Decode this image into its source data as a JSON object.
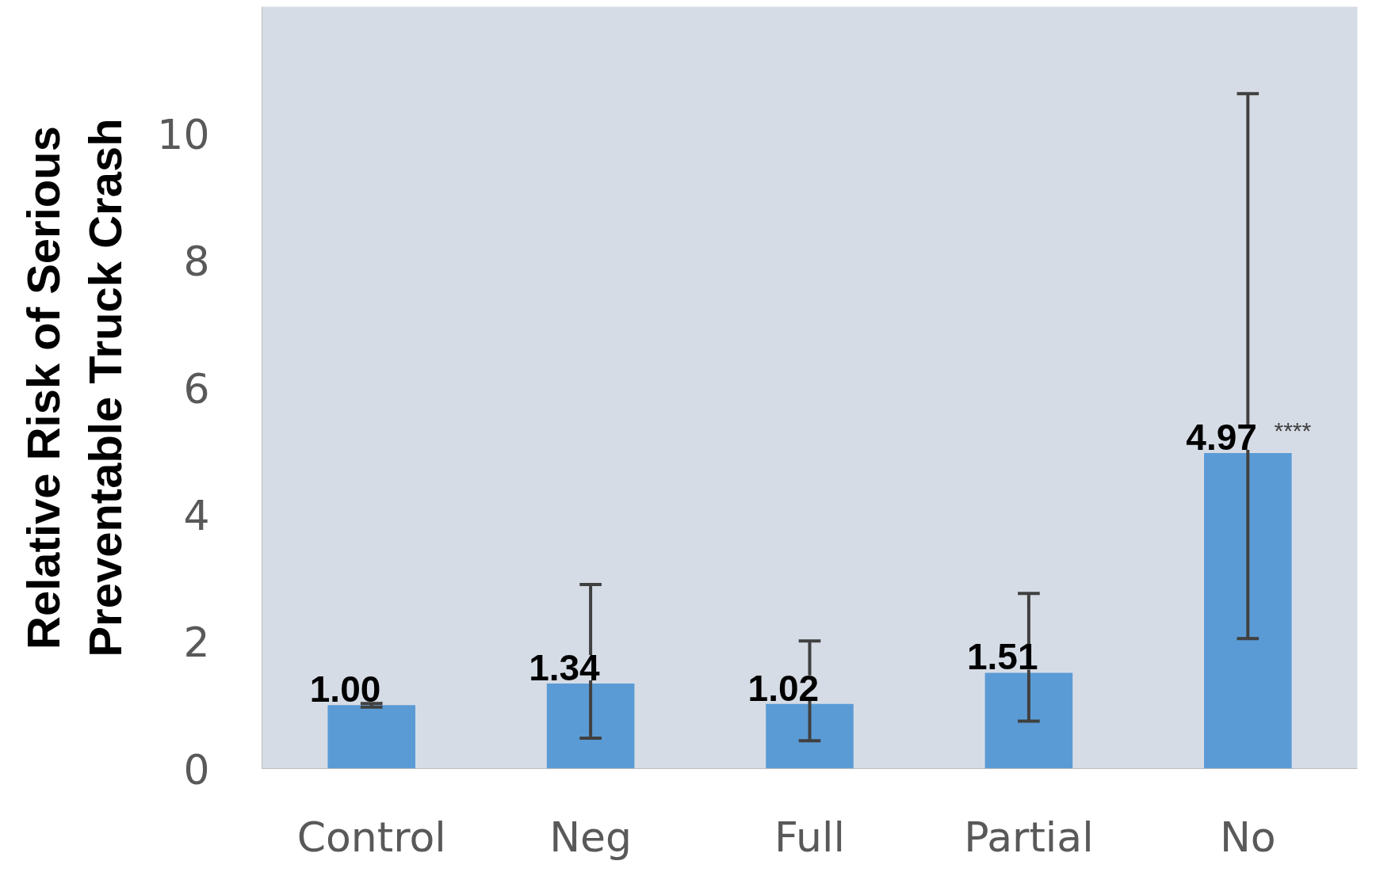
{
  "chart_data": {
    "type": "bar",
    "ylabel": "Relative Risk of Serious\nPreventable Truck Crash",
    "categories": [
      "Control",
      "Neg",
      "Full",
      "Partial",
      "No"
    ],
    "values": [
      1.0,
      1.34,
      1.02,
      1.51,
      4.97
    ],
    "color": "#5b9bd5",
    "errors": [
      [
        0.97,
        1.03
      ],
      [
        0.48,
        2.9
      ],
      [
        0.44,
        2.01
      ],
      [
        0.75,
        2.76
      ],
      [
        2.05,
        10.63
      ]
    ],
    "value_labels": [
      "1.00",
      "1.34",
      "1.02",
      "1.51",
      "4.97"
    ],
    "annotations": [
      {
        "text": "****",
        "x": "No",
        "y": 4.97
      }
    ],
    "ylim": [
      0,
      12
    ],
    "yticks": [
      0,
      2,
      4,
      6,
      8,
      10
    ],
    "grid": false
  }
}
